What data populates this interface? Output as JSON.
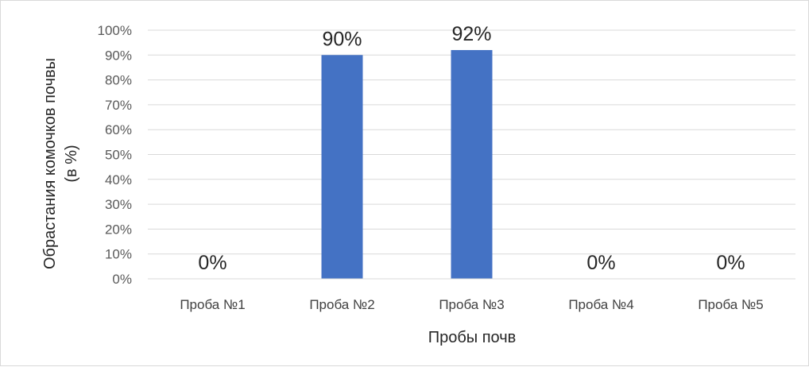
{
  "chart_data": {
    "type": "bar",
    "categories": [
      "Проба №1",
      "Проба №2",
      "Проба №3",
      "Проба №4",
      "Проба №5"
    ],
    "values": [
      0,
      90,
      92,
      0,
      0
    ],
    "data_labels": [
      "0%",
      "90%",
      "92%",
      "0%",
      "0%"
    ],
    "title": "",
    "xlabel": "Пробы почв",
    "ylabel_lines": [
      "Обрастания комочков почвы",
      "(в %)"
    ],
    "ylim": [
      0,
      100
    ],
    "y_ticks": [
      0,
      10,
      20,
      30,
      40,
      50,
      60,
      70,
      80,
      90,
      100
    ],
    "y_tick_labels": [
      "0%",
      "10%",
      "20%",
      "30%",
      "40%",
      "50%",
      "60%",
      "70%",
      "80%",
      "90%",
      "100%"
    ],
    "grid": true,
    "legend": "none",
    "bar_color": "#4472c4",
    "grid_color": "#d9d9d9"
  }
}
